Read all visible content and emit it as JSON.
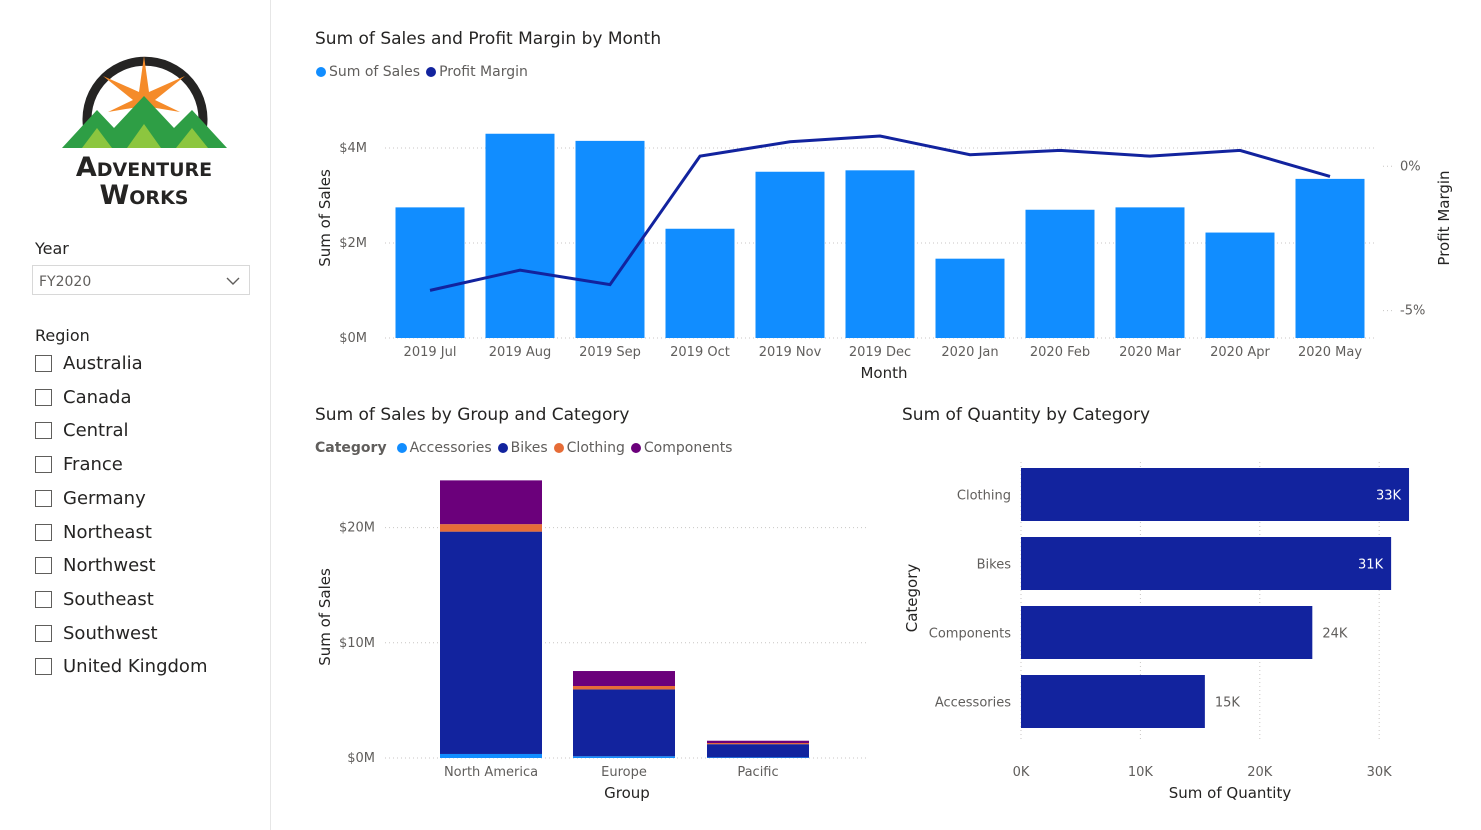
{
  "logo": {
    "line1": "Adventure",
    "line2": "Works"
  },
  "slicers": {
    "year": {
      "title": "Year",
      "value": "FY2020"
    },
    "region": {
      "title": "Region",
      "items": [
        {
          "label": "Australia",
          "checked": false
        },
        {
          "label": "Canada",
          "checked": false
        },
        {
          "label": "Central",
          "checked": false
        },
        {
          "label": "France",
          "checked": false
        },
        {
          "label": "Germany",
          "checked": false
        },
        {
          "label": "Northeast",
          "checked": false
        },
        {
          "label": "Northwest",
          "checked": false
        },
        {
          "label": "Southeast",
          "checked": false
        },
        {
          "label": "Southwest",
          "checked": false
        },
        {
          "label": "United Kingdom",
          "checked": false
        }
      ]
    }
  },
  "colors": {
    "sales": "#118dff",
    "margin": "#12239e",
    "accessories": "#118dff",
    "bikes": "#12239e",
    "clothing": "#e66c37",
    "components": "#6b007b",
    "quantity": "#12239e"
  },
  "chart_data": [
    {
      "type": "bar",
      "title": "Sum of Sales and Profit Margin by Month",
      "xlabel": "Month",
      "ylabel": "Sum of Sales",
      "y2label": "Profit Margin",
      "legend": [
        "Sum of Sales",
        "Profit Margin"
      ],
      "categories": [
        "2019 Jul",
        "2019 Aug",
        "2019 Sep",
        "2019 Oct",
        "2019 Nov",
        "2019 Dec",
        "2020 Jan",
        "2020 Feb",
        "2020 Mar",
        "2020 Apr",
        "2020 May"
      ],
      "series": [
        {
          "name": "Sum of Sales",
          "type": "bar",
          "values": [
            2.75,
            4.3,
            4.15,
            2.3,
            3.5,
            3.53,
            1.67,
            2.7,
            2.75,
            2.22,
            3.35
          ]
        },
        {
          "name": "Profit Margin",
          "type": "line",
          "axis": "secondary",
          "values": [
            -4.3,
            -3.6,
            -4.1,
            0.35,
            0.85,
            1.05,
            0.4,
            0.55,
            0.35,
            0.55,
            -0.35
          ]
        }
      ],
      "ylim": [
        0,
        4.8
      ],
      "yticks": [
        {
          "v": 0,
          "label": "$0M"
        },
        {
          "v": 2,
          "label": "$2M"
        },
        {
          "v": 4,
          "label": "$4M"
        }
      ],
      "y2lim": [
        -5.95,
        1.95
      ],
      "y2ticks": [
        {
          "v": 0,
          "label": "0%"
        },
        {
          "v": -5,
          "label": "-5%"
        }
      ]
    },
    {
      "type": "bar",
      "stacked": true,
      "title": "Sum of Sales by Group and Category",
      "xlabel": "Group",
      "ylabel": "Sum of Sales",
      "legend_title": "Category",
      "categories": [
        "North America",
        "Europe",
        "Pacific"
      ],
      "series": [
        {
          "name": "Accessories",
          "values": [
            0.35,
            0.15,
            0.05
          ]
        },
        {
          "name": "Bikes",
          "values": [
            19.3,
            5.8,
            1.15
          ]
        },
        {
          "name": "Clothing",
          "values": [
            0.65,
            0.3,
            0.1
          ]
        },
        {
          "name": "Components",
          "values": [
            3.8,
            1.3,
            0.2
          ]
        }
      ],
      "ylim": [
        0,
        25
      ],
      "yticks": [
        {
          "v": 0,
          "label": "$0M"
        },
        {
          "v": 10,
          "label": "$10M"
        },
        {
          "v": 20,
          "label": "$20M"
        }
      ]
    },
    {
      "type": "bar",
      "orientation": "horizontal",
      "title": "Sum of Quantity by Category",
      "xlabel": "Sum of Quantity",
      "ylabel": "Category",
      "categories": [
        "Clothing",
        "Bikes",
        "Components",
        "Accessories"
      ],
      "values": [
        32500,
        31000,
        24400,
        15400
      ],
      "data_labels": [
        "33K",
        "31K",
        "24K",
        "15K"
      ],
      "xlim": [
        0,
        33000
      ],
      "xticks": [
        {
          "v": 0,
          "label": "0K"
        },
        {
          "v": 10000,
          "label": "10K"
        },
        {
          "v": 20000,
          "label": "20K"
        },
        {
          "v": 30000,
          "label": "30K"
        }
      ]
    }
  ]
}
